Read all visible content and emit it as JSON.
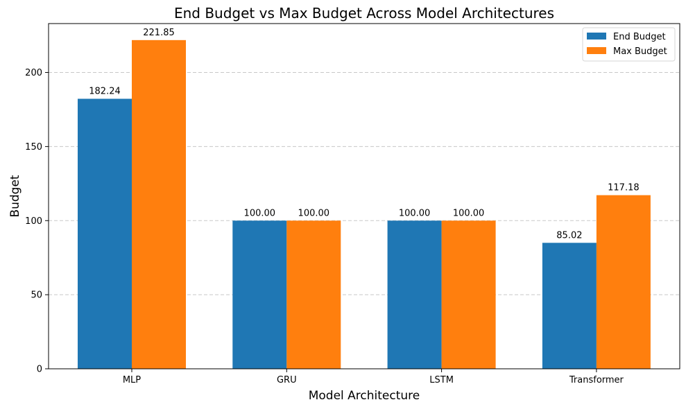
{
  "chart_data": {
    "type": "bar",
    "title": "End Budget vs Max Budget Across Model Architectures",
    "xlabel": "Model Architecture",
    "ylabel": "Budget",
    "categories": [
      "MLP",
      "GRU",
      "LSTM",
      "Transformer"
    ],
    "series": [
      {
        "name": "End Budget",
        "color": "#1f77b4",
        "values": [
          182.24,
          100.0,
          100.0,
          85.02
        ],
        "labels": [
          "182.24",
          "100.00",
          "100.00",
          "85.02"
        ]
      },
      {
        "name": "Max Budget",
        "color": "#ff7f0e",
        "values": [
          221.85,
          100.0,
          100.0,
          117.18
        ],
        "labels": [
          "221.85",
          "100.00",
          "100.00",
          "117.18"
        ]
      }
    ],
    "ylim": [
      0,
      233
    ],
    "yticks": [
      0,
      50,
      100,
      150,
      200
    ],
    "ytick_labels": [
      "0",
      "50",
      "100",
      "150",
      "200"
    ],
    "grid": true,
    "grid_axis": "y",
    "grid_style": "dashed",
    "legend_position": "top-right"
  }
}
